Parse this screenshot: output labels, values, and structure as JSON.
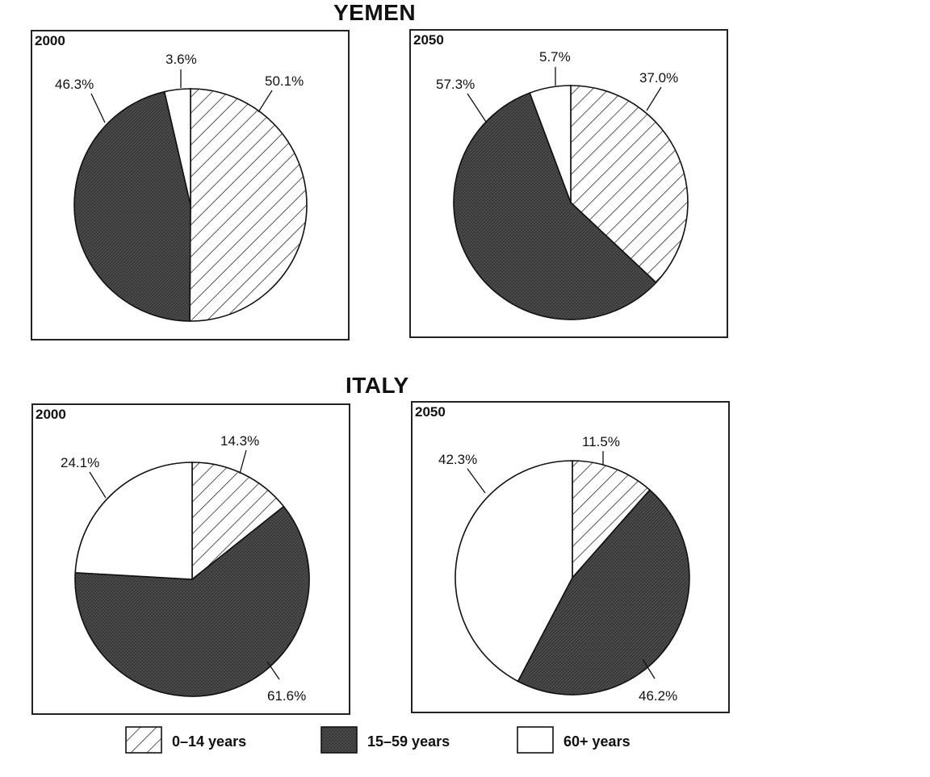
{
  "legend": {
    "items": [
      {
        "label": "0–14 years",
        "pattern": "hatch"
      },
      {
        "label": "15–59 years",
        "pattern": "dark"
      },
      {
        "label": "60+ years",
        "pattern": "white"
      }
    ]
  },
  "colors": {
    "dark_fill": "#4a4a4a",
    "line": "#111111",
    "white_fill": "#ffffff"
  },
  "chart_data": [
    {
      "type": "pie",
      "country": "YEMEN",
      "year": "2000",
      "categories": [
        "0–14 years",
        "15–59 years",
        "60+ years"
      ],
      "values": [
        50.1,
        46.3,
        3.6
      ],
      "labels": [
        "50.1%",
        "46.3%",
        "3.6%"
      ]
    },
    {
      "type": "pie",
      "country": "YEMEN",
      "year": "2050",
      "categories": [
        "0–14 years",
        "15–59 years",
        "60+ years"
      ],
      "values": [
        37.0,
        57.3,
        5.7
      ],
      "labels": [
        "37.0%",
        "57.3%",
        "5.7%"
      ]
    },
    {
      "type": "pie",
      "country": "ITALY",
      "year": "2000",
      "categories": [
        "0–14 years",
        "15–59 years",
        "60+ years"
      ],
      "values": [
        14.3,
        61.6,
        24.1
      ],
      "labels": [
        "14.3%",
        "61.6%",
        "24.1%"
      ]
    },
    {
      "type": "pie",
      "country": "ITALY",
      "year": "2050",
      "categories": [
        "0–14 years",
        "15–59 years",
        "60+ years"
      ],
      "values": [
        11.5,
        46.2,
        42.3
      ],
      "labels": [
        "11.5%",
        "46.2%",
        "42.3%"
      ]
    }
  ]
}
